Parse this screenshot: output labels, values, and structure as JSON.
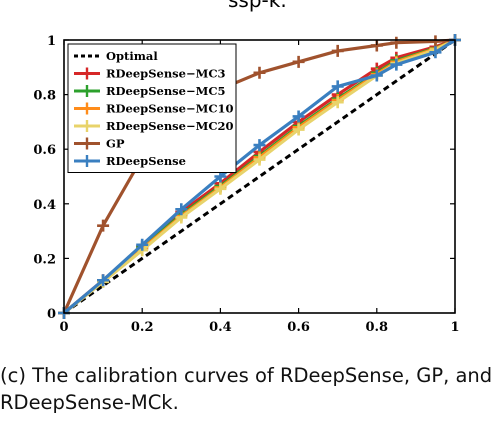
{
  "top_fragment": "ssp-k.",
  "caption": {
    "line1": "(c) The calibration curves of RDeepSense, GP, and",
    "line2": "RDeepSense-MCk."
  },
  "chart_data": {
    "type": "line",
    "xlim": [
      0,
      1
    ],
    "ylim": [
      0,
      1
    ],
    "xticks": [
      "0",
      "0.2",
      "0.4",
      "0.6",
      "0.8",
      "1"
    ],
    "yticks": [
      "0",
      "0.2",
      "0.4",
      "0.6",
      "0.8",
      "1"
    ],
    "grid": false,
    "legend_position": "top-left",
    "series": [
      {
        "name": "Optimal",
        "color": "#000000",
        "dashed": true,
        "marker": "none",
        "x": [
          0,
          1
        ],
        "y": [
          0,
          1
        ]
      },
      {
        "name": "RDeepSense−MC3",
        "color": "#d62728",
        "marker": "plus",
        "x": [
          0,
          0.1,
          0.2,
          0.3,
          0.4,
          0.5,
          0.6,
          0.7,
          0.8,
          0.85,
          0.95,
          1
        ],
        "y": [
          0,
          0.12,
          0.245,
          0.37,
          0.475,
          0.59,
          0.7,
          0.8,
          0.895,
          0.935,
          0.975,
          1
        ]
      },
      {
        "name": "RDeepSense−MC5",
        "color": "#2ca02c",
        "marker": "plus",
        "x": [
          0,
          0.1,
          0.2,
          0.3,
          0.4,
          0.5,
          0.6,
          0.7,
          0.8,
          0.85,
          0.95,
          1
        ],
        "y": [
          0,
          0.118,
          0.24,
          0.36,
          0.465,
          0.575,
          0.685,
          0.785,
          0.88,
          0.925,
          0.97,
          1
        ]
      },
      {
        "name": "RDeepSense−MC10",
        "color": "#ff8c1a",
        "marker": "plus",
        "x": [
          0,
          0.1,
          0.2,
          0.3,
          0.4,
          0.5,
          0.6,
          0.7,
          0.8,
          0.85,
          0.95,
          1
        ],
        "y": [
          0,
          0.116,
          0.235,
          0.355,
          0.46,
          0.57,
          0.68,
          0.78,
          0.875,
          0.92,
          0.968,
          1
        ]
      },
      {
        "name": "RDeepSense−MC20",
        "color": "#e8d36a",
        "marker": "plus",
        "x": [
          0,
          0.1,
          0.2,
          0.3,
          0.4,
          0.5,
          0.6,
          0.7,
          0.8,
          0.85,
          0.95,
          1
        ],
        "y": [
          0,
          0.114,
          0.23,
          0.35,
          0.455,
          0.562,
          0.672,
          0.772,
          0.87,
          0.915,
          0.965,
          1
        ]
      },
      {
        "name": "GP",
        "color": "#a0522d",
        "marker": "plus",
        "x": [
          0,
          0.1,
          0.2,
          0.3,
          0.4,
          0.5,
          0.6,
          0.7,
          0.8,
          0.85,
          0.95,
          1
        ],
        "y": [
          0,
          0.32,
          0.57,
          0.72,
          0.82,
          0.88,
          0.92,
          0.96,
          0.98,
          0.99,
          0.995,
          1
        ]
      },
      {
        "name": "RDeepSense",
        "color": "#3a7fc0",
        "marker": "plus",
        "x": [
          0,
          0.1,
          0.2,
          0.3,
          0.4,
          0.5,
          0.6,
          0.7,
          0.8,
          0.85,
          0.95,
          1
        ],
        "y": [
          0,
          0.12,
          0.25,
          0.38,
          0.5,
          0.615,
          0.72,
          0.83,
          0.87,
          0.91,
          0.955,
          1
        ]
      }
    ]
  }
}
